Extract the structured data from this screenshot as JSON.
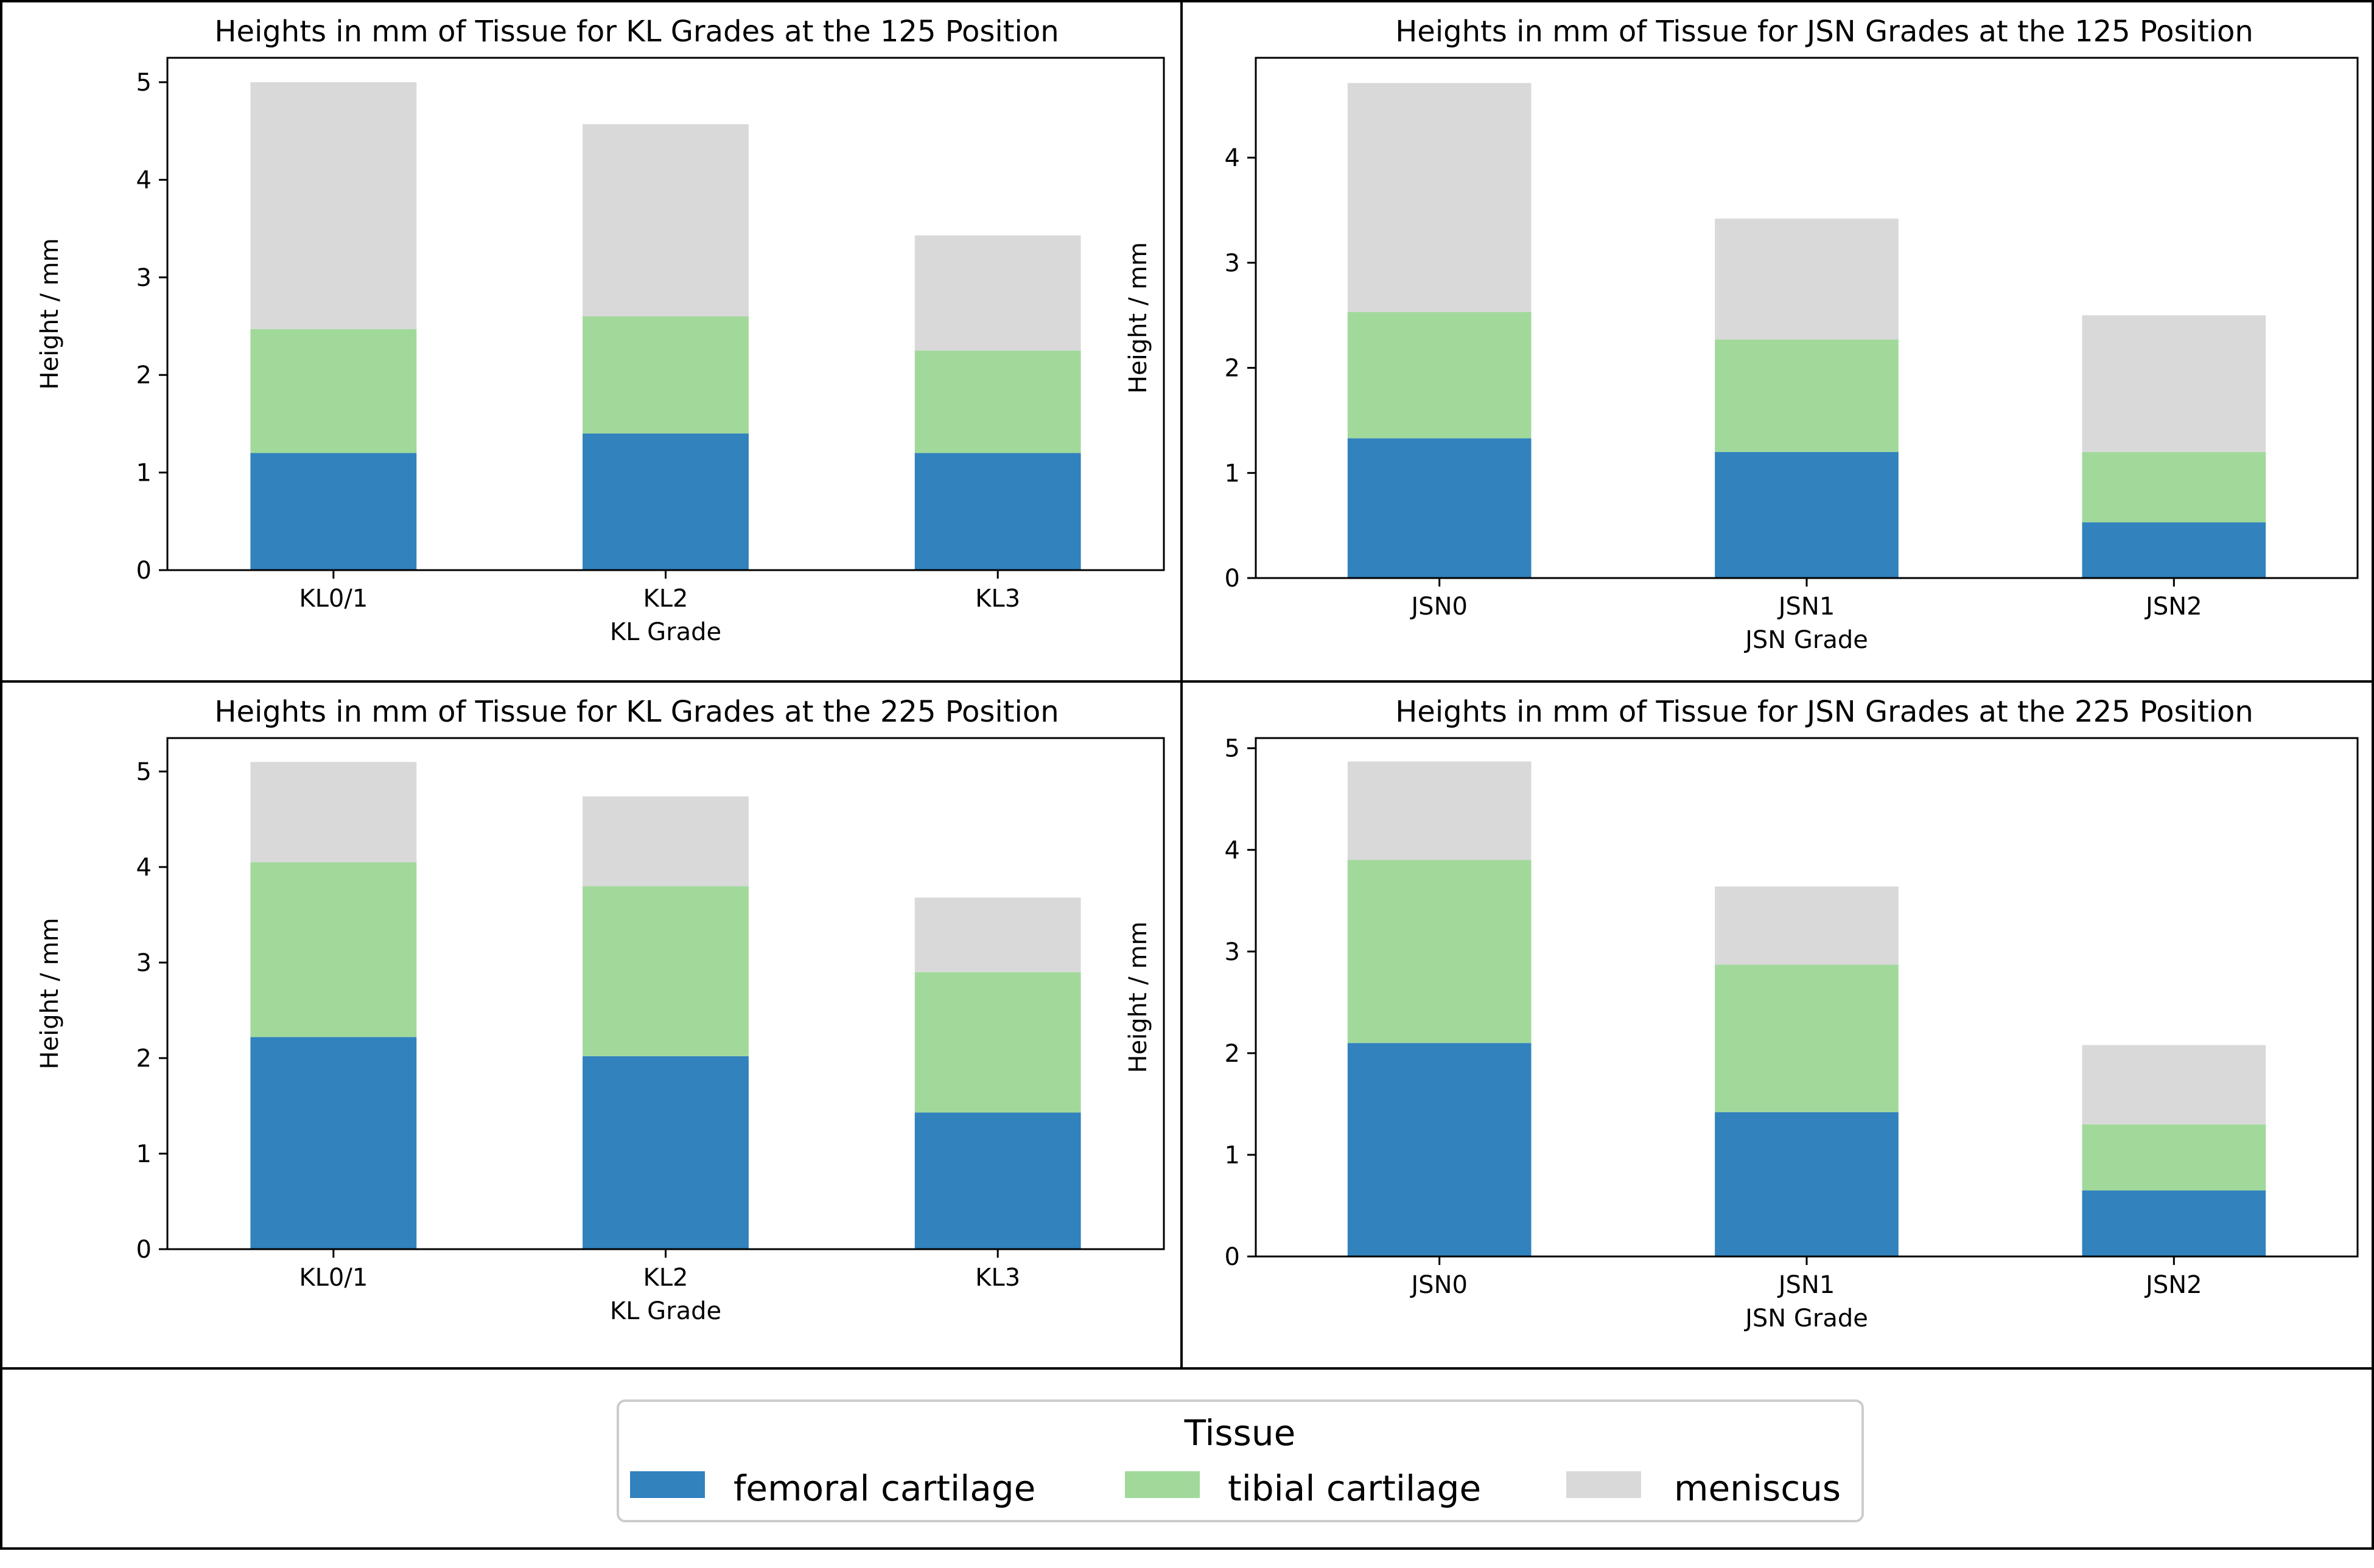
{
  "colors": {
    "femoral": "#3182bd",
    "tibial": "#a1d99b",
    "meniscus": "#d9d9d9"
  },
  "legend": {
    "title": "Tissue",
    "items": [
      "femoral cartilage",
      "tibial cartilage",
      "meniscus"
    ]
  },
  "chart_data": [
    {
      "type": "bar",
      "stacked": true,
      "title": "Heights in mm of Tissue for KL Grades at the 125 Position",
      "xlabel": "KL Grade",
      "ylabel": "Height / mm",
      "categories": [
        "KL0/1",
        "KL2",
        "KL3"
      ],
      "ylim": [
        0,
        5.25
      ],
      "yticks": [
        0,
        1,
        2,
        3,
        4,
        5
      ],
      "series": [
        {
          "name": "femoral cartilage",
          "values": [
            1.2,
            1.4,
            1.2
          ]
        },
        {
          "name": "tibial cartilage",
          "values": [
            1.27,
            1.2,
            1.05
          ]
        },
        {
          "name": "meniscus",
          "values": [
            2.53,
            1.97,
            1.18
          ]
        }
      ]
    },
    {
      "type": "bar",
      "stacked": true,
      "title": "Heights in mm of Tissue for JSN Grades at the 125 Position",
      "xlabel": "JSN Grade",
      "ylabel": "Height / mm",
      "categories": [
        "JSN0",
        "JSN1",
        "JSN2"
      ],
      "ylim": [
        0,
        4.95
      ],
      "yticks": [
        0,
        1,
        2,
        3,
        4
      ],
      "series": [
        {
          "name": "femoral cartilage",
          "values": [
            1.33,
            1.2,
            0.53
          ]
        },
        {
          "name": "tibial cartilage",
          "values": [
            1.2,
            1.07,
            0.67
          ]
        },
        {
          "name": "meniscus",
          "values": [
            2.18,
            1.15,
            1.3
          ]
        }
      ]
    },
    {
      "type": "bar",
      "stacked": true,
      "title": "Heights in mm of Tissue for KL Grades at the 225 Position",
      "xlabel": "KL Grade",
      "ylabel": "Height / mm",
      "categories": [
        "KL0/1",
        "KL2",
        "KL3"
      ],
      "ylim": [
        0,
        5.35
      ],
      "yticks": [
        0,
        1,
        2,
        3,
        4,
        5
      ],
      "series": [
        {
          "name": "femoral cartilage",
          "values": [
            2.22,
            2.02,
            1.43
          ]
        },
        {
          "name": "tibial cartilage",
          "values": [
            1.83,
            1.78,
            1.47
          ]
        },
        {
          "name": "meniscus",
          "values": [
            1.05,
            0.94,
            0.78
          ]
        }
      ]
    },
    {
      "type": "bar",
      "stacked": true,
      "title": "Heights in mm of Tissue for JSN Grades at the 225 Position",
      "xlabel": "JSN Grade",
      "ylabel": "Height / mm",
      "categories": [
        "JSN0",
        "JSN1",
        "JSN2"
      ],
      "ylim": [
        0,
        5.1
      ],
      "yticks": [
        0,
        1,
        2,
        3,
        4,
        5
      ],
      "series": [
        {
          "name": "femoral cartilage",
          "values": [
            2.1,
            1.42,
            0.65
          ]
        },
        {
          "name": "tibial cartilage",
          "values": [
            1.8,
            1.45,
            0.65
          ]
        },
        {
          "name": "meniscus",
          "values": [
            0.97,
            0.77,
            0.78
          ]
        }
      ]
    }
  ]
}
